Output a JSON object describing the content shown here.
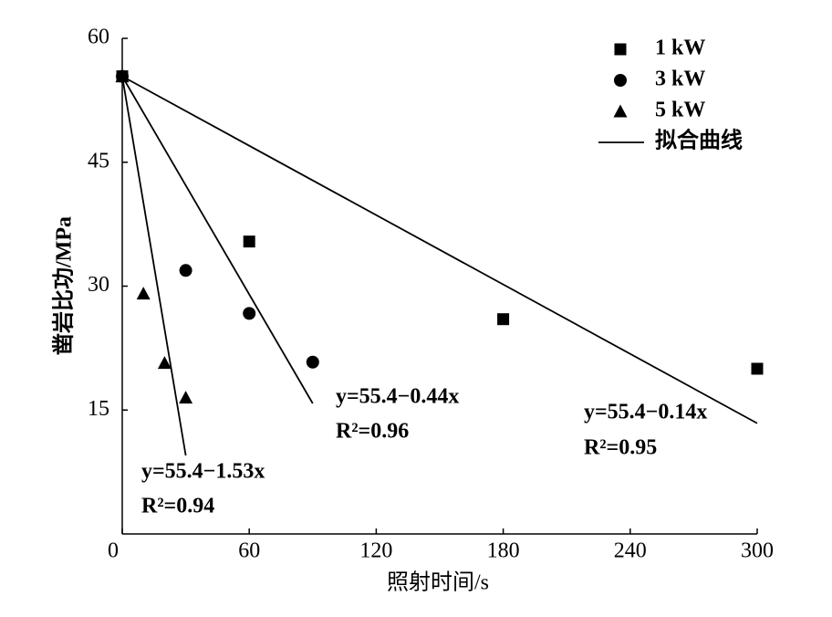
{
  "chart_data": {
    "type": "scatter",
    "x_label": "照射时间/s",
    "y_label": "凿岩比功/MPa",
    "xlim": [
      0,
      300
    ],
    "xticks": [
      0,
      60,
      120,
      180,
      240,
      300
    ],
    "ylim": [
      0,
      60
    ],
    "yticks": [
      15,
      30,
      45,
      60
    ],
    "legend": "upper right",
    "series": [
      {
        "name": "1 kW",
        "marker": "square",
        "color": "#000000",
        "x": [
          0,
          60,
          180,
          300
        ],
        "values": [
          55.4,
          35.4,
          26.0,
          20.0
        ]
      },
      {
        "name": "3 kW",
        "marker": "circle",
        "color": "#000000",
        "x": [
          0,
          30,
          60,
          90
        ],
        "values": [
          55.4,
          31.9,
          26.7,
          20.8
        ]
      },
      {
        "name": "5 kW",
        "marker": "triangle",
        "color": "#000000",
        "x": [
          0,
          10,
          20,
          30
        ],
        "values": [
          55.4,
          29.1,
          20.7,
          16.5
        ]
      }
    ],
    "fit_name": "拟合曲线",
    "fits": [
      {
        "intercept": 55.4,
        "slope": -0.14,
        "x_range": [
          0,
          300
        ],
        "equation": "y=55.4−0.14x",
        "r2": "R²=0.95"
      },
      {
        "intercept": 55.4,
        "slope": -0.44,
        "x_range": [
          0,
          90
        ],
        "equation": "y=55.4−0.44x",
        "r2": "R²=0.96"
      },
      {
        "intercept": 55.4,
        "slope": -1.53,
        "x_range": [
          0,
          30
        ],
        "equation": "y=55.4−1.53x",
        "r2": "R²=0.94"
      }
    ]
  }
}
